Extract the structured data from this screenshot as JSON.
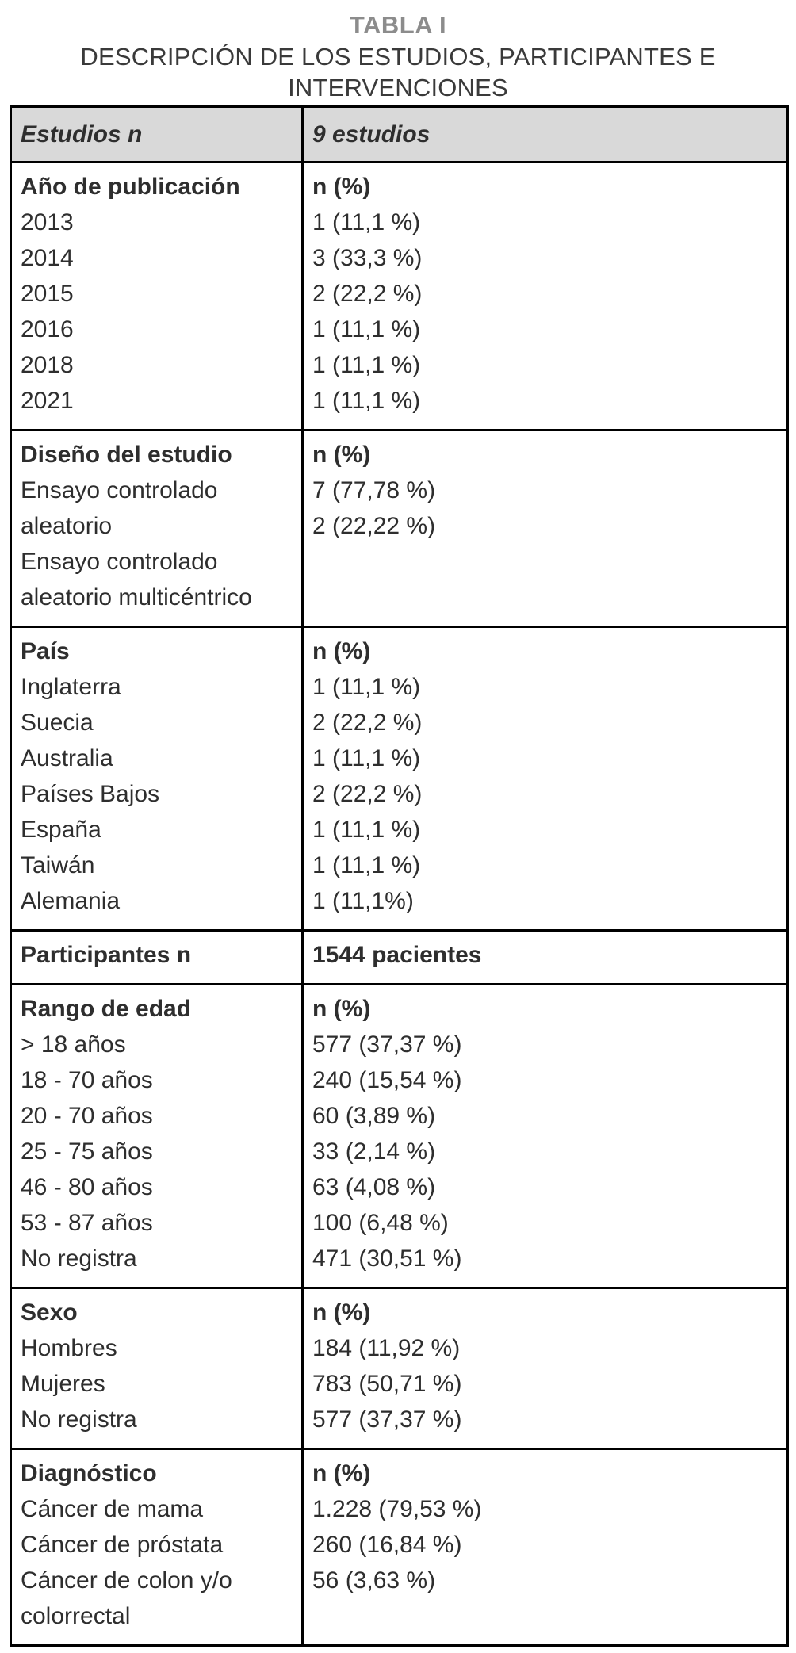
{
  "title": "TABLA I",
  "subtitle_lines": [
    "DESCRIPCIÓN DE LOS ESTUDIOS, PARTICIPANTES E",
    "INTERVENCIONES"
  ],
  "colors": {
    "header_row_bg": "#d9d9d9",
    "table_border": "#000000",
    "title_gray": "#8c8c8c",
    "body_text": "#2e2e2e"
  },
  "table": {
    "header": {
      "left": "Estudios n",
      "right": "9 estudios"
    },
    "sections": [
      {
        "id": "publication-year",
        "left_header": "Año de publicación",
        "right_header": "n (%)",
        "items": [
          "2013",
          "2014",
          "2015",
          "2016",
          "2018",
          "2021"
        ],
        "values": [
          "1 (11,1 %)",
          "3 (33,3 %)",
          "2 (22,2 %)",
          "1 (11,1 %)",
          "1 (11,1 %)",
          "1 (11,1 %)"
        ]
      },
      {
        "id": "study-design",
        "left_header": "Diseño del estudio",
        "right_header": "n (%)",
        "items": [
          "Ensayo controlado aleatorio",
          "Ensayo controlado aleatorio multicéntrico"
        ],
        "values": [
          "7 (77,78 %)",
          "2 (22,22 %)"
        ]
      },
      {
        "id": "country",
        "left_header": "País",
        "right_header": "n (%)",
        "items": [
          "Inglaterra",
          "Suecia",
          "Australia",
          "Países Bajos",
          "España",
          "Taiwán",
          "Alemania"
        ],
        "values": [
          "1 (11,1 %)",
          "2 (22,2 %)",
          "1 (11,1 %)",
          "2 (22,2 %)",
          "1 (11,1 %)",
          "1 (11,1 %)",
          "1 (11,1%)"
        ]
      },
      {
        "id": "participants",
        "left_header": "Participantes n",
        "right_header": "1544 pacientes",
        "items": [],
        "values": []
      },
      {
        "id": "age-range",
        "left_header": "Rango de edad",
        "right_header": "n (%)",
        "items": [
          "> 18 años",
          "18 - 70 años",
          "20 - 70 años",
          "25 - 75 años",
          "46 - 80 años",
          "53 - 87 años",
          "No registra"
        ],
        "values": [
          "577 (37,37 %)",
          "240 (15,54 %)",
          "60 (3,89 %)",
          "33 (2,14 %)",
          "63 (4,08 %)",
          "100 (6,48 %)",
          "471 (30,51 %)"
        ]
      },
      {
        "id": "sex",
        "left_header": "Sexo",
        "right_header": "n (%)",
        "items": [
          "Hombres",
          "Mujeres",
          "No registra"
        ],
        "values": [
          "184 (11,92 %)",
          "783 (50,71 %)",
          "577 (37,37 %)"
        ]
      },
      {
        "id": "diagnosis",
        "left_header": "Diagnóstico",
        "right_header": "n (%)",
        "items": [
          "Cáncer de mama",
          "Cáncer de próstata",
          "Cáncer de colon y/o colorrectal"
        ],
        "values": [
          "1.228 (79,53 %)",
          "260 (16,84 %)",
          "56 (3,63 %)"
        ]
      }
    ]
  }
}
